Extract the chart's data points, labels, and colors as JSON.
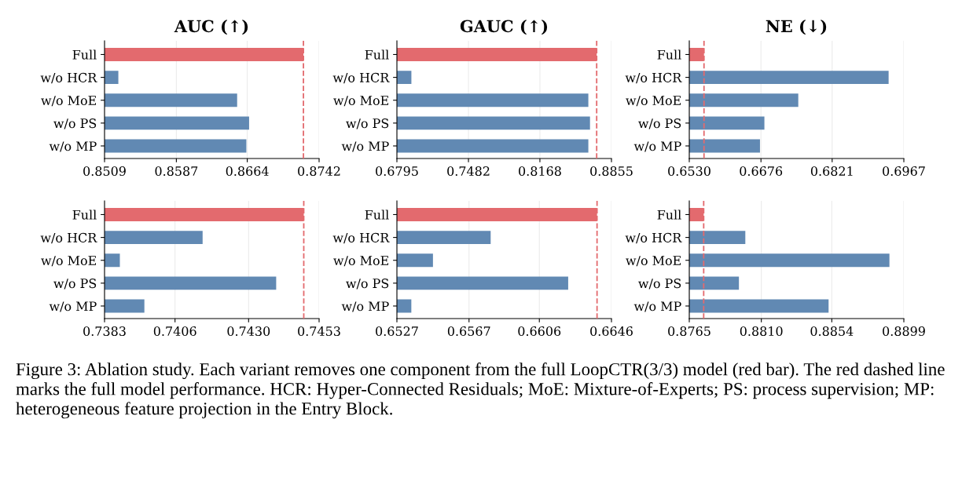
{
  "chart_data": [
    {
      "type": "bar",
      "orientation": "horizontal",
      "title": "AUC (↑)",
      "categories": [
        "Full",
        "w/o HCR",
        "w/o MoE",
        "w/o PS",
        "w/o MP"
      ],
      "values": [
        0.8725,
        0.8524,
        0.8653,
        0.8666,
        0.8663
      ],
      "colors": [
        "#e36a6e",
        "#6189b3",
        "#6189b3",
        "#6189b3",
        "#6189b3"
      ],
      "xlim": [
        0.8509,
        0.8742
      ],
      "xticks": [
        0.8509,
        0.8587,
        0.8664,
        0.8742
      ],
      "grid": "x",
      "ref_lines": [
        {
          "axis": "x",
          "value": 0.8725,
          "color": "#e36a6e",
          "line_style": "dashed"
        }
      ]
    },
    {
      "type": "bar",
      "orientation": "horizontal",
      "title": "GAUC (↑)",
      "categories": [
        "Full",
        "w/o HCR",
        "w/o MoE",
        "w/o PS",
        "w/o MP"
      ],
      "values": [
        0.8713,
        0.6934,
        0.8633,
        0.8649,
        0.8633
      ],
      "colors": [
        "#e36a6e",
        "#6189b3",
        "#6189b3",
        "#6189b3",
        "#6189b3"
      ],
      "xlim": [
        0.6795,
        0.8855
      ],
      "xticks": [
        0.6795,
        0.7482,
        0.8168,
        0.8855
      ],
      "grid": "x",
      "ref_lines": [
        {
          "axis": "x",
          "value": 0.8713,
          "color": "#e36a6e",
          "line_style": "dashed"
        }
      ]
    },
    {
      "type": "bar",
      "orientation": "horizontal",
      "title": "NE (↓)",
      "categories": [
        "Full",
        "w/o HCR",
        "w/o MoE",
        "w/o PS",
        "w/o MP"
      ],
      "values": [
        0.656,
        0.6936,
        0.6752,
        0.6683,
        0.6674
      ],
      "colors": [
        "#e36a6e",
        "#6189b3",
        "#6189b3",
        "#6189b3",
        "#6189b3"
      ],
      "xlim": [
        0.653,
        0.6967
      ],
      "xticks": [
        {
          "value": 0.653,
          "label": "0.6530"
        },
        0.6676,
        0.6821,
        0.6967
      ],
      "grid": "x",
      "ref_lines": [
        {
          "axis": "x",
          "value": 0.656,
          "color": "#e36a6e",
          "line_style": "dashed"
        }
      ]
    },
    {
      "type": "bar",
      "orientation": "horizontal",
      "categories": [
        "Full",
        "w/o HCR",
        "w/o MoE",
        "w/o PS",
        "w/o MP"
      ],
      "values": [
        0.7448,
        0.7415,
        0.7388,
        0.7439,
        0.7396
      ],
      "colors": [
        "#e36a6e",
        "#6189b3",
        "#6189b3",
        "#6189b3",
        "#6189b3"
      ],
      "xlim": [
        0.7383,
        0.7453
      ],
      "xticks": [
        0.7383,
        0.7406,
        {
          "value": 0.743,
          "label": "0.7430"
        },
        0.7453
      ],
      "grid": "x",
      "ref_lines": [
        {
          "axis": "x",
          "value": 0.7448,
          "color": "#e36a6e",
          "line_style": "dashed"
        }
      ]
    },
    {
      "type": "bar",
      "orientation": "horizontal",
      "categories": [
        "Full",
        "w/o HCR",
        "w/o MoE",
        "w/o PS",
        "w/o MP"
      ],
      "values": [
        0.6638,
        0.6579,
        0.6547,
        0.6622,
        0.6535
      ],
      "colors": [
        "#e36a6e",
        "#6189b3",
        "#6189b3",
        "#6189b3",
        "#6189b3"
      ],
      "xlim": [
        0.6527,
        0.6646
      ],
      "xticks": [
        0.6527,
        0.6567,
        0.6606,
        0.6646
      ],
      "grid": "x",
      "ref_lines": [
        {
          "axis": "x",
          "value": 0.6638,
          "color": "#e36a6e",
          "line_style": "dashed"
        }
      ]
    },
    {
      "type": "bar",
      "orientation": "horizontal",
      "categories": [
        "Full",
        "w/o HCR",
        "w/o MoE",
        "w/o PS",
        "w/o MP"
      ],
      "values": [
        0.8774,
        0.88,
        0.889,
        0.8796,
        0.8852
      ],
      "colors": [
        "#e36a6e",
        "#6189b3",
        "#6189b3",
        "#6189b3",
        "#6189b3"
      ],
      "xlim": [
        0.8765,
        0.8899
      ],
      "xticks": [
        0.8765,
        {
          "value": 0.881,
          "label": "0.8810"
        },
        0.8854,
        0.8899
      ],
      "grid": "x",
      "ref_lines": [
        {
          "axis": "x",
          "value": 0.8774,
          "color": "#e36a6e",
          "line_style": "dashed"
        }
      ],
      "annotations": [
        "Figure 3: Ablation study. Each variant removes one component from the full LoopCTR(3/3) model (red bar). The red dashed line marks the full model performance. HCR: Hyper-Connected Residuals; MoE: Mixture-of-Experts; PS: process supervision; MP: heterogeneous feature projection in the Entry Block."
      ]
    }
  ]
}
